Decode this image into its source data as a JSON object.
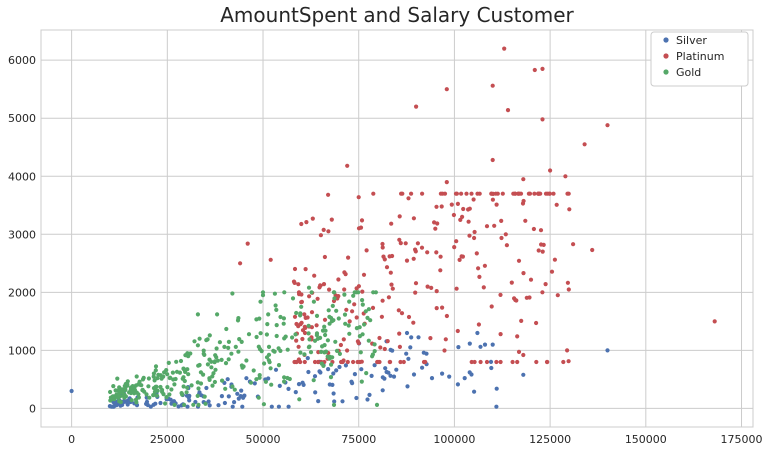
{
  "chart_data": {
    "type": "scatter",
    "title": "AmountSpent and Salary Customer",
    "xlabel": "",
    "ylabel": "",
    "xlim": [
      -8000,
      178000
    ],
    "ylim": [
      -320,
      6520
    ],
    "xticks": [
      0,
      25000,
      50000,
      75000,
      100000,
      125000,
      150000,
      175000
    ],
    "xtick_labels": [
      "0",
      "25000",
      "50000",
      "75000",
      "100000",
      "125000",
      "150000",
      "175000"
    ],
    "yticks": [
      0,
      1000,
      2000,
      3000,
      4000,
      5000,
      6000
    ],
    "ytick_labels": [
      "0",
      "1000",
      "2000",
      "3000",
      "4000",
      "5000",
      "6000"
    ],
    "grid": true,
    "legend_position": "top-right",
    "series": [
      {
        "name": "Silver",
        "color": "#4c72b0",
        "generated": {
          "count": 170,
          "seed": 11,
          "xmin": 10000,
          "xmax": 112000,
          "ymin": 30,
          "ymax": 1300,
          "slope": 0.0068,
          "noise": 0.55
        },
        "points": [
          [
            140000,
            1000
          ],
          [
            0,
            300
          ],
          [
            118000,
            580
          ],
          [
            108000,
            1100
          ],
          [
            110000,
            1100
          ],
          [
            92000,
            960
          ],
          [
            104000,
            620
          ]
        ]
      },
      {
        "name": "Platinum",
        "color": "#c44e52",
        "generated": {
          "count": 290,
          "seed": 23,
          "xmin": 58000,
          "xmax": 130000,
          "ymin": 800,
          "ymax": 3700,
          "slope": 0.026,
          "noise": 0.5
        },
        "points": [
          [
            113000,
            6200
          ],
          [
            123000,
            5850
          ],
          [
            121000,
            5830
          ],
          [
            110000,
            5560
          ],
          [
            98000,
            5500
          ],
          [
            90000,
            5200
          ],
          [
            114000,
            5140
          ],
          [
            123000,
            4980
          ],
          [
            140000,
            4880
          ],
          [
            134000,
            4550
          ],
          [
            110000,
            4280
          ],
          [
            72000,
            4180
          ],
          [
            125000,
            4100
          ],
          [
            129000,
            4000
          ],
          [
            98000,
            3900
          ],
          [
            118000,
            3950
          ],
          [
            168000,
            1500
          ],
          [
            136000,
            2730
          ],
          [
            131000,
            2830
          ],
          [
            127000,
            1950
          ],
          [
            118000,
            920
          ],
          [
            46000,
            2840
          ],
          [
            44000,
            2500
          ],
          [
            52000,
            2560
          ],
          [
            63000,
            3270
          ],
          [
            67000,
            3680
          ],
          [
            75000,
            3640
          ],
          [
            88000,
            3620
          ],
          [
            130000,
            3430
          ],
          [
            105000,
            3600
          ],
          [
            102000,
            3300
          ]
        ]
      },
      {
        "name": "Gold",
        "color": "#55a868",
        "generated": {
          "count": 330,
          "seed": 37,
          "xmin": 10000,
          "xmax": 80000,
          "ymin": 60,
          "ymax": 2000,
          "slope": 0.019,
          "noise": 0.42
        },
        "points": [
          [
            50000,
            2000
          ],
          [
            50000,
            1950
          ],
          [
            42000,
            1980
          ],
          [
            38000,
            1620
          ],
          [
            33000,
            1620
          ],
          [
            62000,
            2080
          ],
          [
            78000,
            1520
          ]
        ]
      }
    ]
  }
}
